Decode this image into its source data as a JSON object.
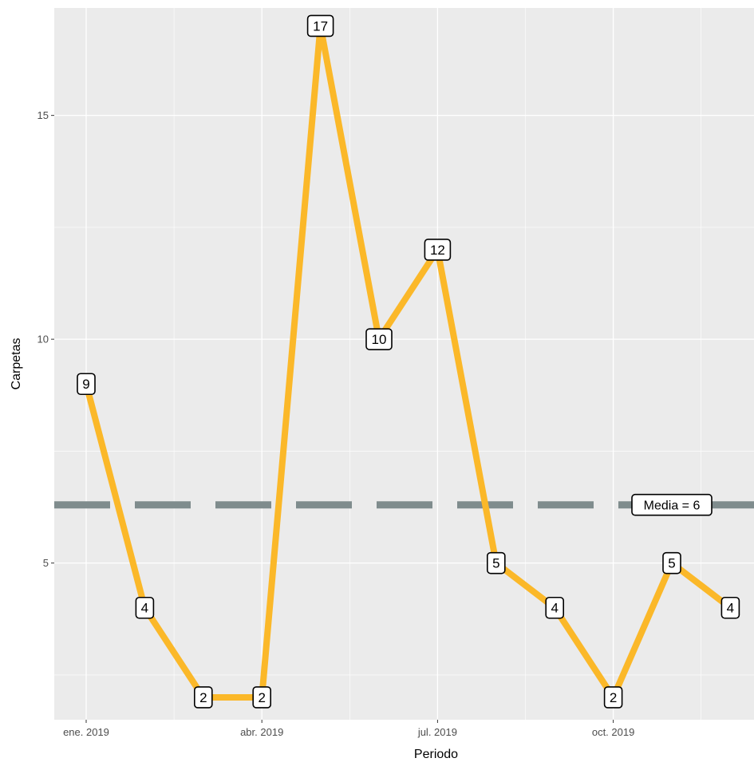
{
  "chart_data": {
    "type": "line",
    "title": "",
    "xlabel": "Periodo",
    "ylabel": "Carpetas",
    "x": [
      "2019-01",
      "2019-02",
      "2019-03",
      "2019-04",
      "2019-05",
      "2019-06",
      "2019-07",
      "2019-08",
      "2019-09",
      "2019-10",
      "2019-11",
      "2019-12"
    ],
    "values": [
      9,
      4,
      2,
      2,
      17,
      10,
      12,
      5,
      4,
      2,
      5,
      4
    ],
    "x_ticks": [
      "ene. 2019",
      "abr. 2019",
      "jul. 2019",
      "oct. 2019"
    ],
    "y_ticks": [
      5,
      10,
      15
    ],
    "ylim": [
      1.5,
      17.4
    ],
    "mean_line": {
      "value": 6.3,
      "label": "Media = 6"
    },
    "grid": true,
    "colors": {
      "line": "#FBB829",
      "mean": "#7F8C8D",
      "panel": "#EBEBEB",
      "grid": "#FFFFFF"
    }
  }
}
